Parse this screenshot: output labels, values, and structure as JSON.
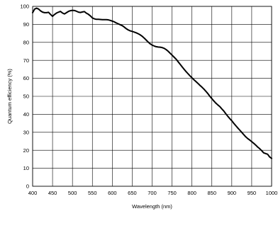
{
  "chart_data": {
    "type": "line",
    "title": "",
    "xlabel": "Wavelength (nm)",
    "ylabel": "Quantum efficiency (%)",
    "xlim": [
      400,
      1000
    ],
    "ylim": [
      0,
      100
    ],
    "x_ticks": [
      400,
      450,
      500,
      550,
      600,
      650,
      700,
      750,
      800,
      850,
      900,
      950,
      1000
    ],
    "y_ticks": [
      0,
      10,
      20,
      30,
      40,
      50,
      60,
      70,
      80,
      90,
      100
    ],
    "grid": true,
    "line_color": "#000000",
    "series": [
      {
        "x": [
          400,
          405,
          410,
          415,
          420,
          425,
          430,
          435,
          440,
          445,
          450,
          455,
          460,
          465,
          470,
          475,
          480,
          485,
          490,
          495,
          500,
          505,
          510,
          515,
          520,
          525,
          530,
          535,
          540,
          545,
          550,
          555,
          560,
          565,
          570,
          575,
          580,
          585,
          590,
          595,
          600,
          605,
          610,
          615,
          620,
          625,
          630,
          635,
          640,
          645,
          650,
          655,
          660,
          665,
          670,
          675,
          680,
          685,
          690,
          695,
          700,
          705,
          710,
          715,
          720,
          725,
          730,
          735,
          740,
          745,
          750,
          755,
          760,
          765,
          770,
          775,
          780,
          785,
          790,
          795,
          800,
          805,
          810,
          815,
          820,
          825,
          830,
          835,
          840,
          845,
          850,
          855,
          860,
          865,
          870,
          875,
          880,
          885,
          890,
          895,
          900,
          905,
          910,
          915,
          920,
          925,
          930,
          935,
          940,
          945,
          950,
          955,
          960,
          965,
          970,
          975,
          980,
          985,
          990,
          995,
          1000
        ],
        "y": [
          96.5,
          98.5,
          99,
          98.5,
          97.5,
          96.8,
          96.5,
          96.5,
          96.7,
          95.5,
          94.5,
          95.5,
          96.3,
          96.8,
          97.2,
          96.3,
          95.8,
          96.5,
          97.2,
          97.6,
          97.8,
          97.7,
          97.3,
          96.8,
          96.6,
          96.9,
          97.1,
          96.2,
          95.6,
          94.7,
          93.6,
          93.1,
          92.8,
          92.8,
          92.7,
          92.6,
          92.6,
          92.6,
          92.5,
          92.2,
          91.8,
          91.4,
          90.8,
          90.3,
          89.8,
          89.3,
          88.5,
          87.6,
          86.9,
          86.4,
          86.1,
          85.7,
          85.3,
          84.8,
          84.2,
          83.4,
          82.4,
          81.3,
          80.2,
          79.2,
          78.5,
          78.0,
          77.6,
          77.4,
          77.3,
          77.1,
          76.7,
          76.0,
          75.1,
          74.0,
          72.9,
          71.8,
          70.7,
          69.3,
          67.9,
          66.5,
          65.1,
          63.8,
          62.6,
          61.4,
          60.3,
          59.2,
          58.2,
          57.2,
          56.1,
          55.1,
          54.0,
          52.8,
          51.5,
          50.0,
          48.7,
          47.4,
          46.2,
          45.2,
          44.3,
          43.0,
          41.8,
          40.3,
          38.9,
          37.6,
          36.4,
          35.0,
          33.7,
          32.4,
          31.2,
          30.0,
          28.7,
          27.5,
          26.5,
          25.7,
          24.8,
          23.9,
          22.9,
          21.8,
          20.9,
          19.8,
          18.6,
          18.2,
          17.8,
          16.3,
          15.5
        ]
      }
    ]
  }
}
